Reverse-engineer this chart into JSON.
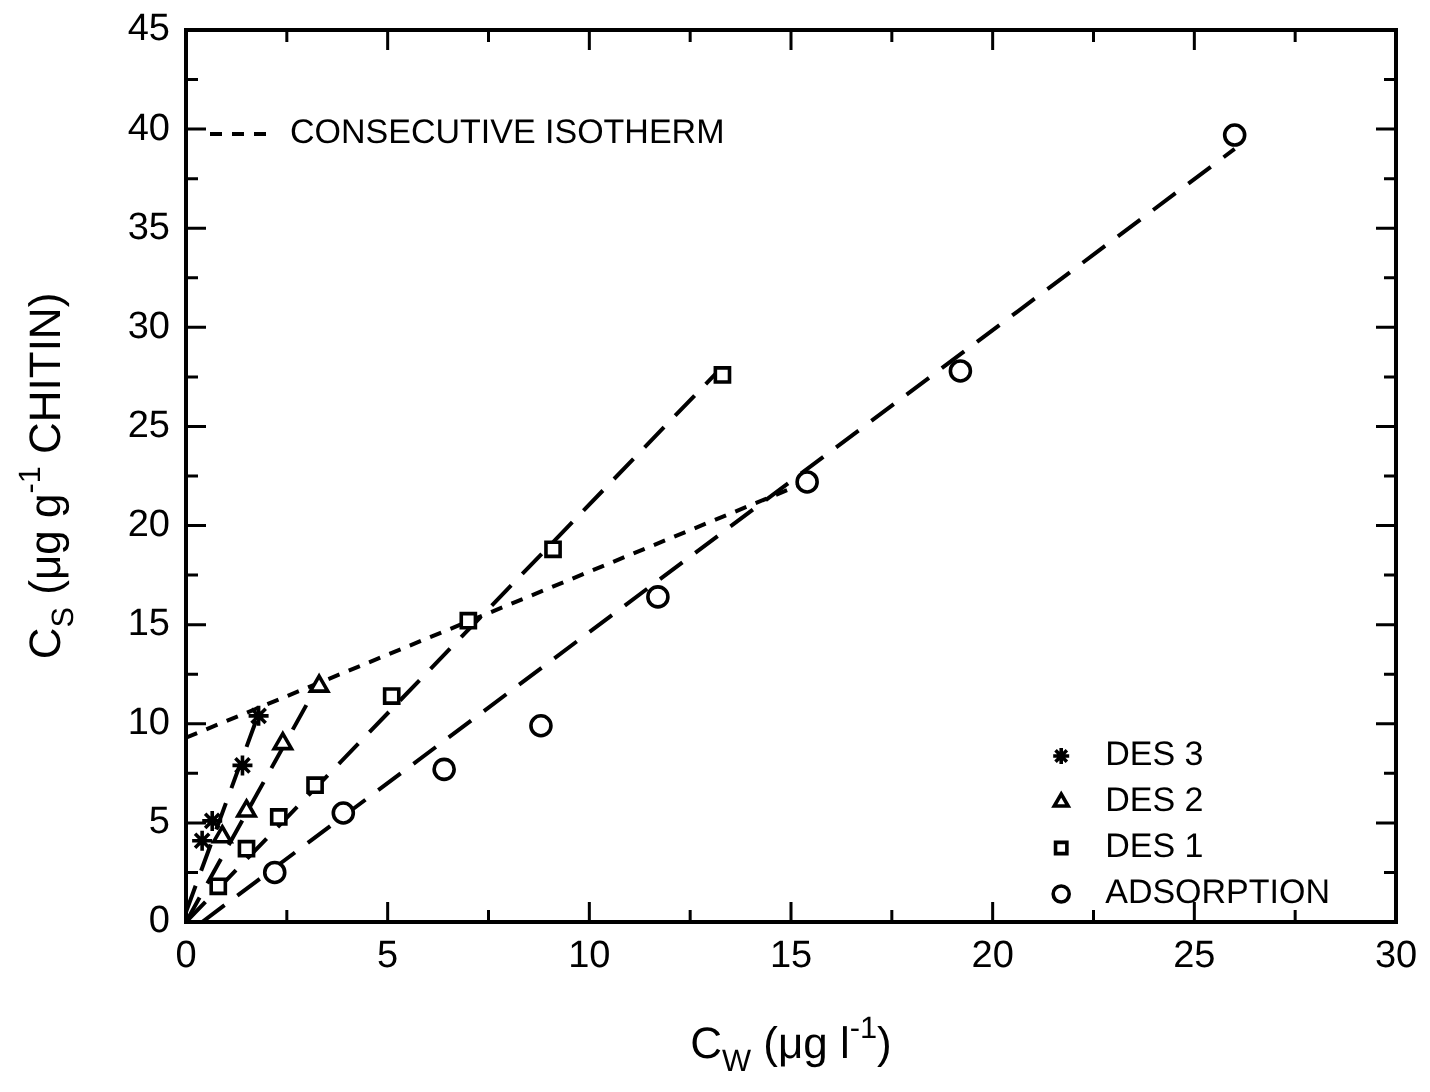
{
  "chart_data": {
    "type": "scatter",
    "xlabel": "C$_{W}$ (μg l$^{-1}$)",
    "ylabel": "C$_{S}$ (μg g$^{-1}$ CHITIN)",
    "xlim": [
      0,
      30
    ],
    "ylim": [
      0,
      45
    ],
    "xticks": [
      0,
      {
        "value": 2.5,
        "label": null
      },
      5,
      {
        "value": 7.5,
        "label": null
      },
      10,
      {
        "value": 12.5,
        "label": null
      },
      15,
      {
        "value": 17.5,
        "label": null
      },
      20,
      {
        "value": 22.5,
        "label": null
      },
      25,
      {
        "value": 27.5,
        "label": null
      },
      30
    ],
    "yticks": [
      0,
      {
        "value": 2.5,
        "label": null
      },
      5,
      {
        "value": 7.5,
        "label": null
      },
      10,
      {
        "value": 12.5,
        "label": null
      },
      15,
      {
        "value": 17.5,
        "label": null
      },
      20,
      {
        "value": 22.5,
        "label": null
      },
      25,
      {
        "value": 27.5,
        "label": null
      },
      30,
      {
        "value": 32.5,
        "label": null
      },
      35,
      {
        "value": 37.5,
        "label": null
      },
      40,
      {
        "value": 42.5,
        "label": null
      },
      45
    ],
    "grid": false,
    "legend": "bottom right",
    "series": [
      {
        "name": "DES 3",
        "color": "#000000",
        "marker": "cross",
        "x": [
          0.4,
          0.65,
          1.4,
          1.8
        ],
        "values": [
          4.1,
          5.1,
          7.9,
          10.4
        ]
      },
      {
        "name": "DES 2",
        "color": "#000000",
        "marker": "triangle",
        "x": [
          0.9,
          1.5,
          2.4,
          3.3
        ],
        "values": [
          4.3,
          5.6,
          9.0,
          11.9
        ]
      },
      {
        "name": "DES 1",
        "color": "#000000",
        "marker": "square",
        "x": [
          0.8,
          1.5,
          2.3,
          3.2,
          5.1,
          7.0,
          9.1,
          13.3
        ],
        "values": [
          1.8,
          3.7,
          5.3,
          6.9,
          11.4,
          15.2,
          18.8,
          27.6
        ]
      },
      {
        "name": "ADSORPTION",
        "color": "#000000",
        "marker": "circle",
        "x": [
          2.2,
          3.9,
          6.4,
          8.8,
          11.7,
          15.4,
          19.2,
          26
        ],
        "values": [
          2.5,
          5.5,
          7.7,
          9.9,
          16.4,
          22.2,
          27.8,
          39.7
        ]
      },
      {
        "name": "CONSECUTIVE ISOTHERM",
        "type": "line",
        "color": "#000000",
        "marker": "none",
        "line_style": "dotted",
        "x": [
          0,
          15.4
        ],
        "values": [
          9.3,
          22.2
        ]
      },
      {
        "type": "line",
        "color": "#000000",
        "marker": "none",
        "line_style": "dashed",
        "x": [
          0,
          1.8
        ],
        "values": [
          0.5,
          10.5
        ]
      },
      {
        "type": "line",
        "color": "#000000",
        "marker": "none",
        "line_style": "dashed",
        "x": [
          0,
          3.3
        ],
        "values": [
          0,
          12.1
        ]
      },
      {
        "type": "line",
        "color": "#000000",
        "marker": "none",
        "line_style": "dashed",
        "x": [
          0,
          13.2
        ],
        "values": [
          0,
          27.8
        ]
      },
      {
        "type": "line",
        "color": "#000000",
        "marker": "none",
        "line_style": "dashed",
        "x": [
          0.4,
          26
        ],
        "values": [
          0,
          39
        ]
      }
    ]
  }
}
